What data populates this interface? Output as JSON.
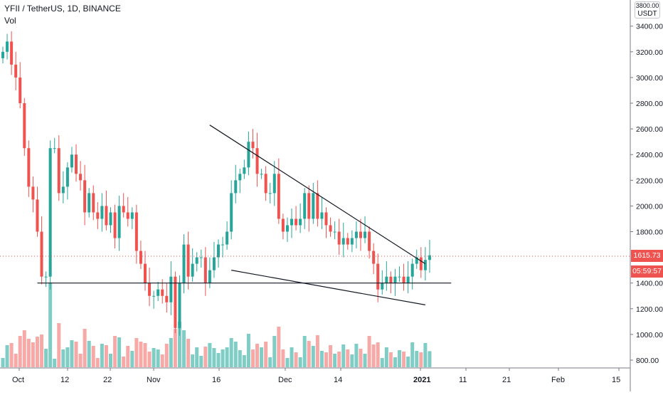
{
  "header": {
    "symbol": "YFII / TetherUS, 1D, BINANCE",
    "volume_label": "Vol"
  },
  "price_axis": {
    "unit": "USDT",
    "top_partial_label": "3800.00",
    "ticks": [
      "3400.00",
      "3200.00",
      "3000.00",
      "2800.00",
      "2600.00",
      "2400.00",
      "2200.00",
      "2000.00",
      "1800.00",
      "1400.00",
      "1200.00",
      "1000.00",
      "800.00"
    ],
    "last_price": "1615.73",
    "countdown": "05:59:57"
  },
  "time_axis": {
    "labels": [
      "Oct",
      "12",
      "22",
      "Nov",
      "16",
      "Dec",
      "14",
      "2021",
      "11",
      "21",
      "Feb",
      "15"
    ]
  },
  "colors": {
    "up": "#26a69a",
    "down": "#ef5350",
    "up_volume": "#7fcdc5",
    "down_volume": "#f7a9a7",
    "axis_line": "#787b86",
    "trendline": "#131722"
  },
  "chart_data": {
    "type": "candlestick",
    "interval": "1D",
    "date_range": [
      "2020-09-30",
      "2021-01-05"
    ],
    "ylim": [
      700,
      3800
    ],
    "grid": false,
    "last_price_line": 1615.73,
    "ohlcv_sample": [
      {
        "date": "2020-09-30",
        "open": 3150,
        "high": 3300,
        "low": 3000,
        "close": 3200
      },
      {
        "date": "2020-10-01",
        "open": 3200,
        "high": 3320,
        "low": 3100,
        "close": 3280
      },
      {
        "date": "2020-10-02",
        "open": 3250,
        "high": 3280,
        "low": 3050,
        "close": 3100
      },
      {
        "date": "2020-10-03",
        "open": 3100,
        "high": 3180,
        "low": 2950,
        "close": 3000
      },
      {
        "date": "2020-10-04",
        "open": 3050,
        "high": 3180,
        "low": 2750,
        "close": 2800
      }
    ],
    "drawn_lines": [
      {
        "label": "upper trendline",
        "from": {
          "date": "2020-11-17",
          "price": 2630
        },
        "to": {
          "date": "2021-01-06",
          "price": 1550
        }
      },
      {
        "label": "lower trendline",
        "from": {
          "date": "2020-11-22",
          "price": 1500
        },
        "to": {
          "date": "2021-01-06",
          "price": 1230
        }
      },
      {
        "label": "horizontal support",
        "from": {
          "date": "2020-10-08",
          "price": 1400
        },
        "to": {
          "date": "2021-01-12",
          "price": 1400
        }
      }
    ]
  }
}
